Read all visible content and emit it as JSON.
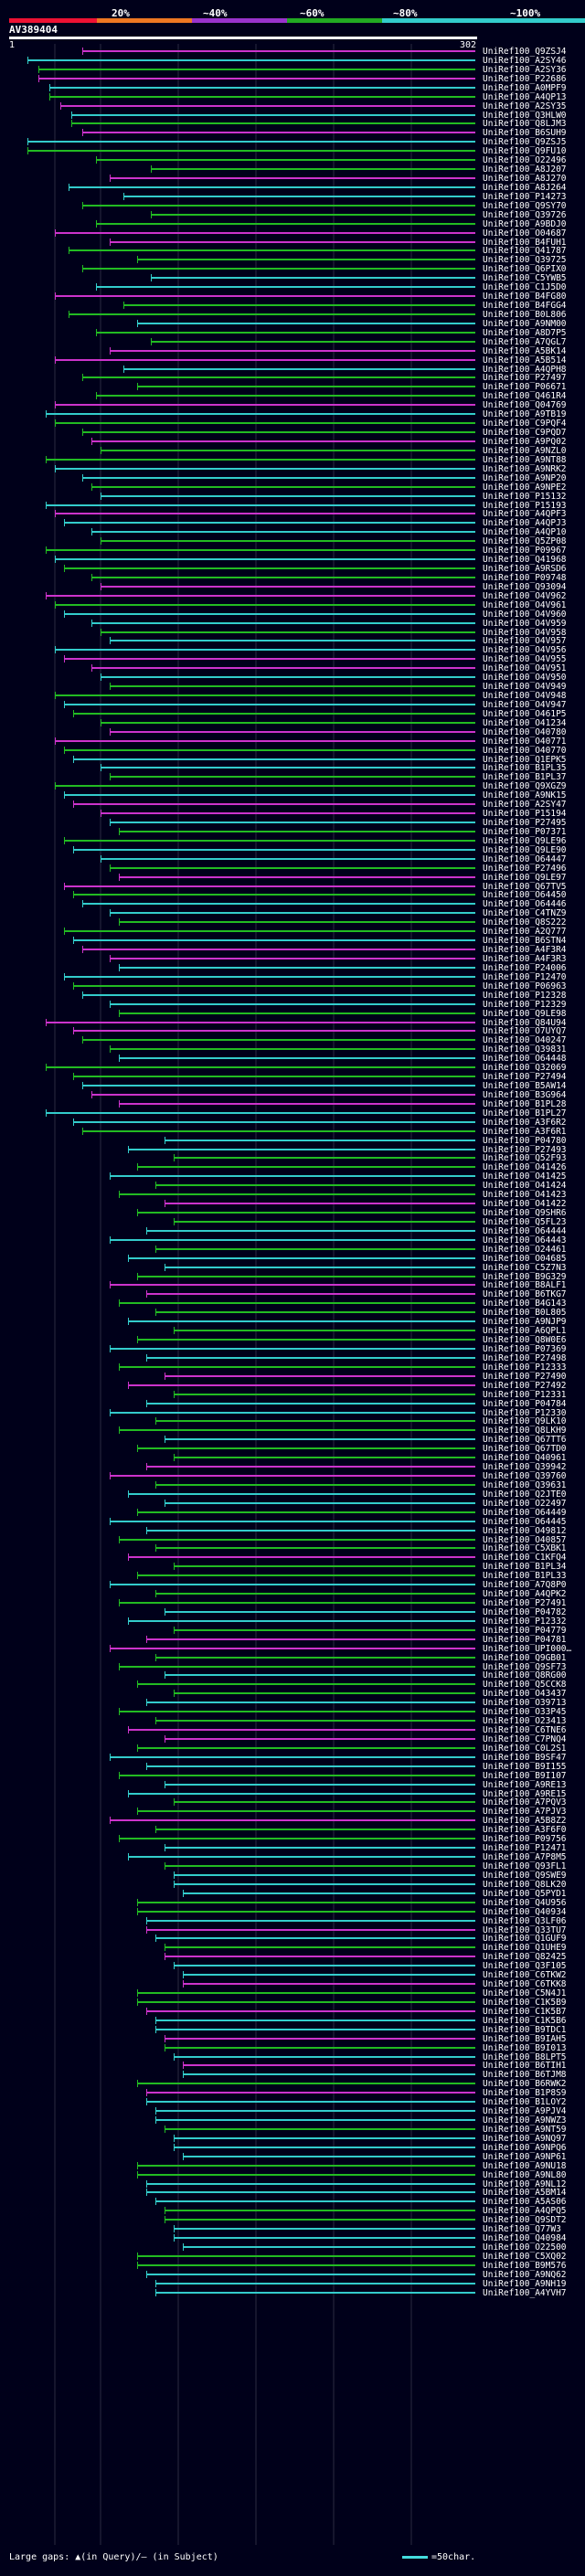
{
  "scale": {
    "labels": [
      "20%",
      "~40%",
      "~60%",
      "~80%",
      "~100%"
    ],
    "colors": [
      "#ee1133",
      "#ee7722",
      "#9933cc",
      "#22aa22",
      "#33cccc"
    ]
  },
  "query": {
    "title": "AV389404",
    "start_label": "1",
    "end_label": "302"
  },
  "colors": {
    "cyan": "#33cccc",
    "green": "#22bb22",
    "magenta": "#cc33cc",
    "grid": "#2a2a40"
  },
  "hit_labels": [
    "UniRef100_Q9ZSJ4",
    "UniRef100_A2SY46",
    "UniRef100_A2SY36",
    "UniRef100_P22686",
    "UniRef100_A0MPF9",
    "UniRef100_A4QP13",
    "UniRef100_A2SY35",
    "UniRef100_Q3HLW0",
    "UniRef100_Q8LJM3",
    "UniRef100_B6SUH9",
    "UniRef100_Q9ZSJ5",
    "UniRef100_Q9FU10",
    "UniRef100_O22496",
    "UniRef100_A8J207",
    "UniRef100_A8J270",
    "UniRef100_A8J264",
    "UniRef100_P14273",
    "UniRef100_Q9SY70",
    "UniRef100_Q39726",
    "UniRef100_A9BDJ0",
    "UniRef100_O04687",
    "UniRef100_B4FUH1",
    "UniRef100_Q41787",
    "UniRef100_Q39725",
    "UniRef100_Q6PIX0",
    "UniRef100_C5YWB5",
    "UniRef100_C1J5D0",
    "UniRef100_B4FG80",
    "UniRef100_B4FGG4",
    "UniRef100_B0L806",
    "UniRef100_A9NM00",
    "UniRef100_A8D7P5",
    "UniRef100_A7QGL7",
    "UniRef100_A5BK14",
    "UniRef100_A5B514",
    "UniRef100_A4QPH8",
    "UniRef100_P27497",
    "UniRef100_P06671",
    "UniRef100_Q461R4",
    "UniRef100_Q04769",
    "UniRef100_A9TB19",
    "UniRef100_C9PQF4",
    "UniRef100_C9PQD7",
    "UniRef100_A9PQ02",
    "UniRef100_A9NZL0",
    "UniRef100_A9NT88",
    "UniRef100_A9NRK2",
    "UniRef100_A9NP20",
    "UniRef100_A9NPE2",
    "UniRef100_P15132",
    "UniRef100_P15193",
    "UniRef100_A4QPF3",
    "UniRef100_A4QPJ3",
    "UniRef100_A4QP10",
    "UniRef100_Q5ZP08",
    "UniRef100_P09967",
    "UniRef100_Q41968",
    "UniRef100_A9RSD6",
    "UniRef100_P09748",
    "UniRef100_Q93094",
    "UniRef100_O4V962",
    "UniRef100_O4V961",
    "UniRef100_O4V960",
    "UniRef100_O4V959",
    "UniRef100_O4V958",
    "UniRef100_O4V957",
    "UniRef100_O4V956",
    "UniRef100_O4V955",
    "UniRef100_O4V951",
    "UniRef100_O4V950",
    "UniRef100_O4V949",
    "UniRef100_O4V948",
    "UniRef100_O4V947",
    "UniRef100_O461P5",
    "UniRef100_O41234",
    "UniRef100_O40780",
    "UniRef100_O40771",
    "UniRef100_O40770",
    "UniRef100_Q1EPK5",
    "UniRef100_B1PL35",
    "UniRef100_B1PL37",
    "UniRef100_Q9XGZ9",
    "UniRef100_A9NK15",
    "UniRef100_A2SY47",
    "UniRef100_P15194",
    "UniRef100_P27495",
    "UniRef100_P07371",
    "UniRef100_Q9LE96",
    "UniRef100_Q9LE90",
    "UniRef100_O64447",
    "UniRef100_P27496",
    "UniRef100_Q9LE97",
    "UniRef100_Q67TV5",
    "UniRef100_O64450",
    "UniRef100_O64446",
    "UniRef100_C4TNZ9",
    "UniRef100_Q8S222",
    "UniRef100_A2Q777",
    "UniRef100_B6STN4",
    "UniRef100_A4F3R4",
    "UniRef100_A4F3R3",
    "UniRef100_P24006",
    "UniRef100_P12470",
    "UniRef100_P06963",
    "UniRef100_P12328",
    "UniRef100_P12329",
    "UniRef100_Q9LE98",
    "UniRef100_Q84U94",
    "UniRef100_O7UYQ7",
    "UniRef100_O40247",
    "UniRef100_Q39831",
    "UniRef100_O64448",
    "UniRef100_Q32069",
    "UniRef100_P27494",
    "UniRef100_B5AW14",
    "UniRef100_B3G964",
    "UniRef100_B1PL28",
    "UniRef100_B1PL27",
    "UniRef100_A3F6R2",
    "UniRef100_A3F6R1",
    "UniRef100_P04780",
    "UniRef100_P27493",
    "UniRef100_Q52F93",
    "UniRef100_O41426",
    "UniRef100_O41425",
    "UniRef100_O41424",
    "UniRef100_O41423",
    "UniRef100_O41422",
    "UniRef100_Q9SHR6",
    "UniRef100_Q5FL23",
    "UniRef100_O64444",
    "UniRef100_O64443",
    "UniRef100_O24461",
    "UniRef100_O04685",
    "UniRef100_C5Z7N3",
    "UniRef100_B9G329",
    "UniRef100_B8ALF1",
    "UniRef100_B6TKG7",
    "UniRef100_B4G143",
    "UniRef100_B0L805",
    "UniRef100_A9NJP9",
    "UniRef100_A6QPL1",
    "UniRef100_Q8W0E6",
    "UniRef100_P07369",
    "UniRef100_P27498",
    "UniRef100_P12333",
    "UniRef100_P27490",
    "UniRef100_P27492",
    "UniRef100_P12331",
    "UniRef100_P04784",
    "UniRef100_P12330",
    "UniRef100_Q9LK10",
    "UniRef100_Q8LKH9",
    "UniRef100_Q67TT6",
    "UniRef100_Q67TD0",
    "UniRef100_Q40961",
    "UniRef100_Q39942",
    "UniRef100_Q39760",
    "UniRef100_Q39631",
    "UniRef100_Q2JTE0",
    "UniRef100_O22497",
    "UniRef100_O64449",
    "UniRef100_O64445",
    "UniRef100_O49812",
    "UniRef100_O40857",
    "UniRef100_C5XBK1",
    "UniRef100_C1KFQ4",
    "UniRef100_B1PL34",
    "UniRef100_B1PL33",
    "UniRef100_A7Q8P0",
    "UniRef100_A4QPK2",
    "UniRef100_P27491",
    "UniRef100_P04782",
    "UniRef100_P12332",
    "UniRef100_P04779",
    "UniRef100_P04781",
    "UniRef100_UPI000…",
    "UniRef100_Q9GB01",
    "UniRef100_Q9SF73",
    "UniRef100_Q8RG00",
    "UniRef100_Q5CCK8",
    "UniRef100_O43437",
    "UniRef100_O39713",
    "UniRef100_O33P45",
    "UniRef100_O23413",
    "UniRef100_C6TNE6",
    "UniRef100_C7PNQ4",
    "UniRef100_C0L2S1",
    "UniRef100_B9SF47",
    "UniRef100_B9I155",
    "UniRef100_B9I107",
    "UniRef100_A9RE13",
    "UniRef100_A9RE15",
    "UniRef100_A7PQV3",
    "UniRef100_A7PJV3",
    "UniRef100_A5B8Z2",
    "UniRef100_A3F6F0",
    "UniRef100_P09756",
    "UniRef100_P12471",
    "UniRef100_A7P8M5",
    "UniRef100_Q93FL1",
    "UniRef100_Q9SWE9",
    "UniRef100_Q8LK20",
    "UniRef100_Q5PYD1",
    "UniRef100_Q4U956",
    "UniRef100_Q40934",
    "UniRef100_Q3LF06",
    "UniRef100_Q33TU7",
    "UniRef100_Q1GUF9",
    "UniRef100_Q1UHE9",
    "UniRef100_Q82425",
    "UniRef100_Q3F105",
    "UniRef100_C6TKW2",
    "UniRef100_C6TKK8",
    "UniRef100_C5N4J1",
    "UniRef100_C1K5B9",
    "UniRef100_C1K5B7",
    "UniRef100_C1K5B6",
    "UniRef100_B9TDC1",
    "UniRef100_B9IAH5",
    "UniRef100_B9I013",
    "UniRef100_B8LPT5",
    "UniRef100_B6TIH1",
    "UniRef100_B6TJM8",
    "UniRef100_B6RWK2",
    "UniRef100_B1P8S9",
    "UniRef100_B1LOY2",
    "UniRef100_A9PJV4",
    "UniRef100_A9NWZ3",
    "UniRef100_A9NT59",
    "UniRef100_A9NQ97",
    "UniRef100_A9NPQ6",
    "UniRef100_A9NP61",
    "UniRef100_A9NU18",
    "UniRef100_A9NL80",
    "UniRef100_A9NL12",
    "UniRef100_A5BM14",
    "UniRef100_A5AS06",
    "UniRef100_A4QPQ5",
    "UniRef100_Q9SDT2",
    "UniRef100_Q77W3",
    "UniRef100_Q40984",
    "UniRef100_O22500",
    "UniRef100_C5XQ02",
    "UniRef100_B9M576",
    "UniRef100_A9NQ62",
    "UniRef100_A9NH19",
    "UniRef100_A4YVH7"
  ],
  "footer": {
    "text": "Large gaps: ▲(in Query)/— (in Subject)"
  },
  "legend": {
    "text": "=50char."
  }
}
